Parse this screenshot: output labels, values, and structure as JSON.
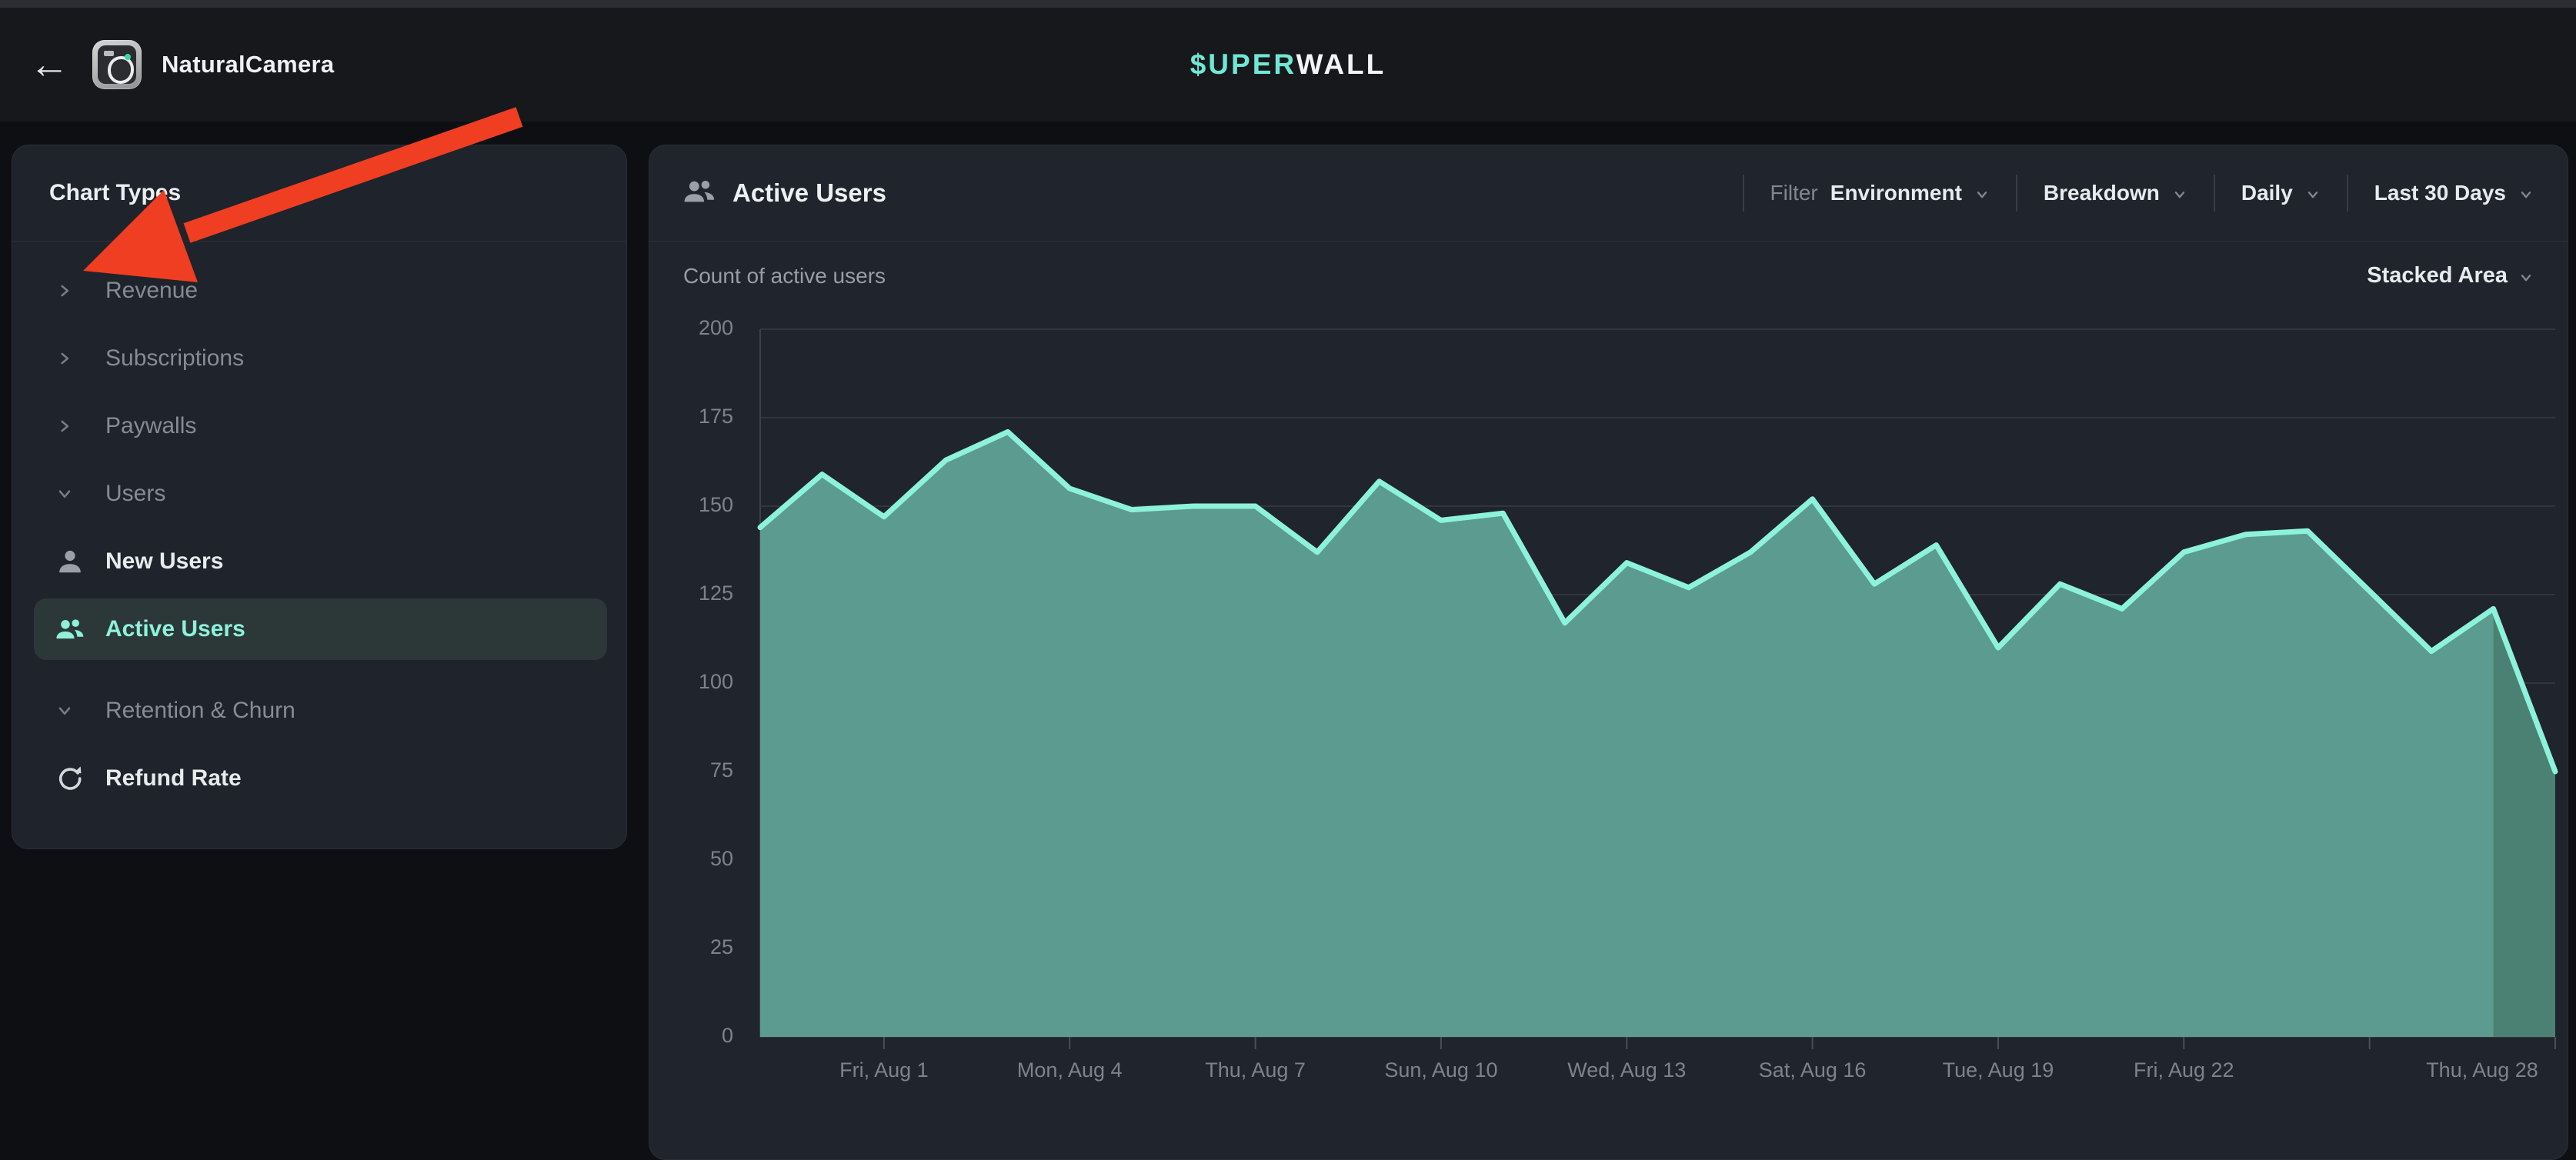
{
  "topbar": {
    "back_label": "←",
    "app_name": "NaturalCamera",
    "logo_teal": "$UPER",
    "logo_white": "WALL"
  },
  "sidebar": {
    "title": "Chart Types",
    "groups": [
      {
        "label": "Revenue",
        "state": "collapsed"
      },
      {
        "label": "Subscriptions",
        "state": "collapsed"
      },
      {
        "label": "Paywalls",
        "state": "collapsed"
      },
      {
        "label": "Users",
        "state": "expanded",
        "children": [
          {
            "label": "New Users",
            "icon": "person",
            "selected": false
          },
          {
            "label": "Active Users",
            "icon": "users",
            "selected": true
          }
        ]
      },
      {
        "label": "Retention & Churn",
        "state": "expanded",
        "gap_before": true,
        "children": [
          {
            "label": "Refund Rate",
            "icon": "refresh",
            "selected": false
          }
        ]
      }
    ]
  },
  "panel": {
    "title": "Active Users",
    "title_icon": "users-icon",
    "filters": [
      {
        "prefix": "Filter",
        "label": "Environment"
      },
      {
        "label": "Breakdown"
      },
      {
        "label": "Daily"
      },
      {
        "label": "Last 30 Days"
      }
    ],
    "subtitle": "Count of active users",
    "chart_type_selector": "Stacked Area"
  },
  "annotation": {
    "type": "arrow",
    "color": "#F03E22",
    "points_to": "Revenue"
  },
  "chart_data": {
    "type": "area",
    "variant": "stacked-area-single-series",
    "title": "Count of active users",
    "x": [
      "Jul 30",
      "Jul 31",
      "Aug 1",
      "Aug 2",
      "Aug 3",
      "Aug 4",
      "Aug 5",
      "Aug 6",
      "Aug 7",
      "Aug 8",
      "Aug 9",
      "Aug 10",
      "Aug 11",
      "Aug 12",
      "Aug 13",
      "Aug 14",
      "Aug 15",
      "Aug 16",
      "Aug 17",
      "Aug 18",
      "Aug 19",
      "Aug 20",
      "Aug 21",
      "Aug 22",
      "Aug 23",
      "Aug 24",
      "Aug 25",
      "Aug 26",
      "Aug 27",
      "Aug 28"
    ],
    "values": [
      144,
      159,
      147,
      163,
      171,
      155,
      149,
      150,
      150,
      137,
      157,
      146,
      148,
      117,
      134,
      127,
      137,
      152,
      128,
      139,
      110,
      128,
      121,
      137,
      142,
      143,
      126,
      109,
      121,
      75
    ],
    "ylim": [
      0,
      200
    ],
    "yticks": [
      0,
      25,
      50,
      75,
      100,
      125,
      150,
      175,
      200
    ],
    "xticks": [
      {
        "x": "Aug 1",
        "label": "Fri, Aug 1"
      },
      {
        "x": "Aug 4",
        "label": "Mon, Aug 4"
      },
      {
        "x": "Aug 7",
        "label": "Thu, Aug 7"
      },
      {
        "x": "Aug 10",
        "label": "Sun, Aug 10"
      },
      {
        "x": "Aug 13",
        "label": "Wed, Aug 13"
      },
      {
        "x": "Aug 16",
        "label": "Sat, Aug 16"
      },
      {
        "x": "Aug 19",
        "label": "Tue, Aug 19"
      },
      {
        "x": "Aug 22",
        "label": "Fri, Aug 22"
      },
      {
        "x": "Aug 25",
        "label": ""
      },
      {
        "x": "Aug 28",
        "label": "Thu, Aug 28"
      }
    ],
    "grid": true,
    "legend": "none",
    "line_color": "#8DF2DC",
    "fill_color": "#5C9B8F",
    "last_segment_fill_color": "#4A8173",
    "note": "final segment (Aug 27 to Aug 28) rendered with darker fill"
  }
}
